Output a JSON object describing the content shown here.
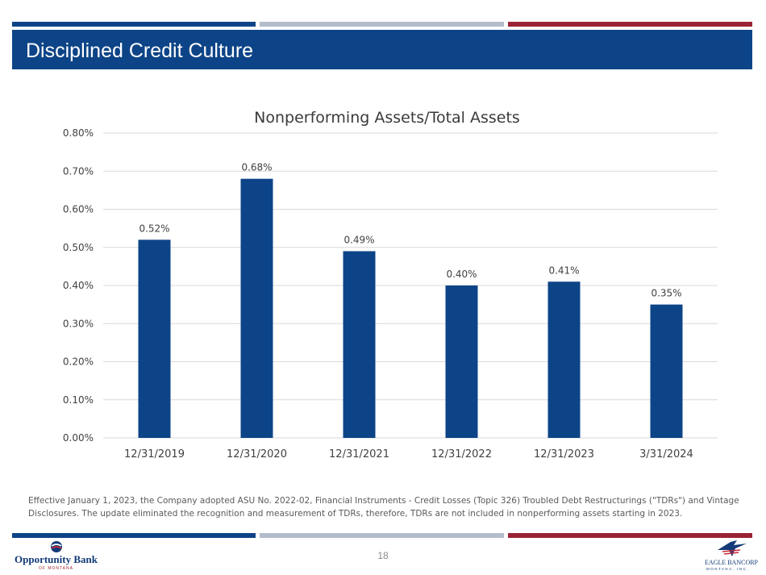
{
  "colors": {
    "navy": "#0d4487",
    "silver": "#b4bccb",
    "maroon": "#9b2335",
    "bar": "#0d4487",
    "grid": "#d9d9d9"
  },
  "header": {
    "title": "Disciplined Credit Culture"
  },
  "chart_data": {
    "type": "bar",
    "title": "Nonperforming Assets/Total Assets",
    "categories": [
      "12/31/2019",
      "12/31/2020",
      "12/31/2021",
      "12/31/2022",
      "12/31/2023",
      "3/31/2024"
    ],
    "values": [
      0.52,
      0.68,
      0.49,
      0.4,
      0.41,
      0.35
    ],
    "data_labels": [
      "0.52%",
      "0.68%",
      "0.49%",
      "0.40%",
      "0.41%",
      "0.35%"
    ],
    "ylim": [
      0,
      0.8
    ],
    "yticks": [
      0,
      0.1,
      0.2,
      0.3,
      0.4,
      0.5,
      0.6,
      0.7,
      0.8
    ],
    "ytick_labels": [
      "0.00%",
      "0.10%",
      "0.20%",
      "0.30%",
      "0.40%",
      "0.50%",
      "0.60%",
      "0.70%",
      "0.80%"
    ],
    "xlabel": "",
    "ylabel": "",
    "grid": true,
    "legend": false
  },
  "footnote": "Effective January 1, 2023, the Company adopted ASU No. 2022-02, Financial Instruments - Credit Losses (Topic 326) Troubled Debt Restructurings (\"TDRs\") and Vintage Disclosures. The update eliminated the recognition and measurement of TDRs, therefore, TDRs are not included in nonperforming assets starting in 2023.",
  "footer": {
    "page_number": "18",
    "logo_left": {
      "name": "Opportunity Bank",
      "sub": "OF MONTANA",
      "icon": "opportunity-bank-logo-icon"
    },
    "logo_right": {
      "name": "EAGLE BANCORP",
      "sub": "MONTANA, INC.",
      "icon": "eagle-logo-icon"
    }
  }
}
